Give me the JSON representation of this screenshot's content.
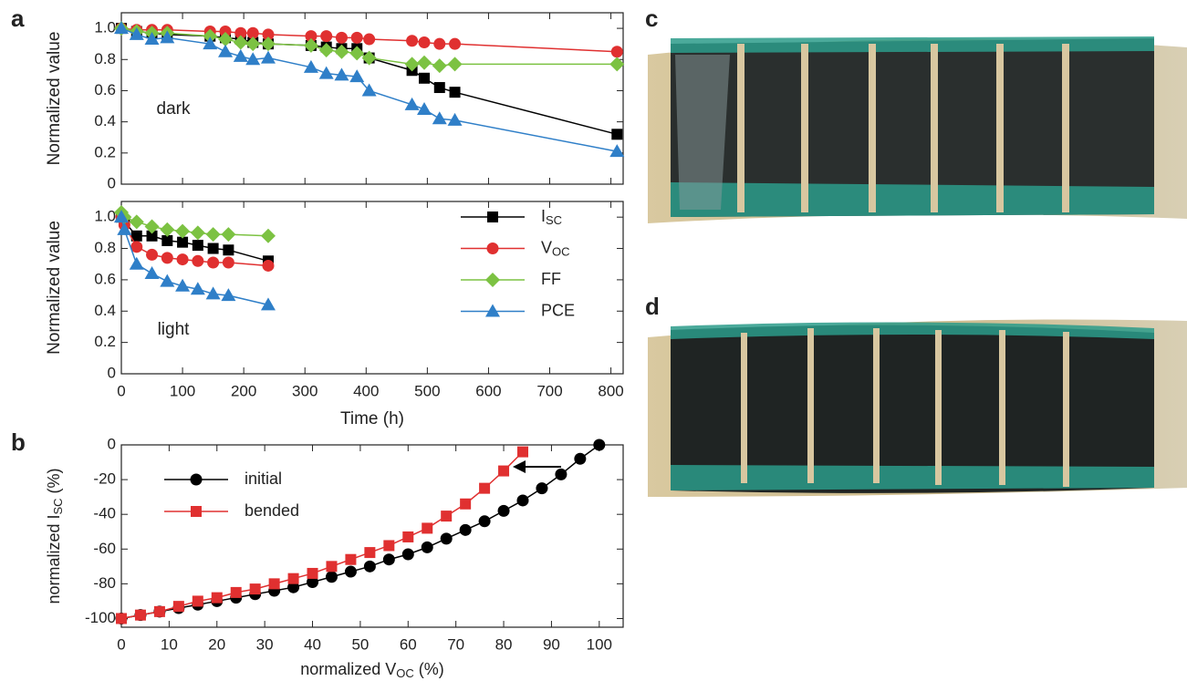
{
  "panel_labels": [
    "a",
    "b",
    "c",
    "d"
  ],
  "chart_data": [
    {
      "type": "line",
      "ylabel": "Normalized value",
      "annotation": "dark",
      "x": [
        0,
        25,
        50,
        75,
        145,
        170,
        195,
        215,
        240,
        310,
        335,
        360,
        385,
        405,
        475,
        495,
        520,
        545,
        810
      ],
      "xlim": [
        0,
        820
      ],
      "xticks": [
        0,
        100,
        200,
        300,
        400,
        500,
        600,
        700,
        800
      ],
      "show_xtick_labels": false,
      "ylim": [
        0,
        1.1
      ],
      "yticks": [
        0,
        0.2,
        0.4,
        0.6,
        0.8,
        {
          "value": 1.0,
          "label": "1.0"
        }
      ],
      "series": [
        {
          "color": "#000000",
          "marker": "square",
          "values": [
            1.0,
            0.98,
            0.97,
            0.96,
            0.95,
            0.94,
            0.93,
            0.91,
            0.9,
            0.89,
            0.88,
            0.87,
            0.87,
            0.81,
            0.73,
            0.68,
            0.62,
            0.59,
            0.32
          ]
        },
        {
          "color": "#e03030",
          "marker": "circle",
          "values": [
            1.0,
            0.99,
            0.99,
            0.99,
            0.98,
            0.98,
            0.97,
            0.97,
            0.96,
            0.95,
            0.95,
            0.94,
            0.94,
            0.93,
            0.92,
            0.91,
            0.9,
            0.9,
            0.85
          ]
        },
        {
          "color": "#7cc242",
          "marker": "diamond",
          "values": [
            1.0,
            0.98,
            0.97,
            0.97,
            0.95,
            0.93,
            0.91,
            0.9,
            0.9,
            0.89,
            0.86,
            0.85,
            0.84,
            0.81,
            0.77,
            0.78,
            0.76,
            0.77,
            0.77
          ]
        },
        {
          "color": "#2f7fc8",
          "marker": "triangle",
          "values": [
            1.0,
            0.96,
            0.93,
            0.94,
            0.9,
            0.85,
            0.82,
            0.8,
            0.81,
            0.75,
            0.71,
            0.7,
            0.69,
            0.6,
            0.51,
            0.48,
            0.42,
            0.41,
            0.21
          ]
        }
      ]
    },
    {
      "type": "line",
      "ylabel": "Normalized value",
      "annotation": "light",
      "xlabel": "Time (h)",
      "x": [
        0,
        5,
        25,
        50,
        75,
        100,
        125,
        150,
        175,
        240
      ],
      "xlim": [
        0,
        820
      ],
      "xticks": [
        0,
        100,
        200,
        300,
        400,
        500,
        600,
        700,
        800
      ],
      "show_xtick_labels": true,
      "ylim": [
        0,
        1.1
      ],
      "yticks": [
        0,
        0.2,
        0.4,
        0.6,
        0.8,
        {
          "value": 1.0,
          "label": "1.0"
        }
      ],
      "legend": "right",
      "series": [
        {
          "name": [
            "I",
            "SC"
          ],
          "color": "#000000",
          "marker": "square",
          "values": [
            1.0,
            0.97,
            0.88,
            0.88,
            0.85,
            0.84,
            0.82,
            0.8,
            0.79,
            0.72
          ]
        },
        {
          "name": [
            "V",
            "OC"
          ],
          "color": "#e03030",
          "marker": "circle",
          "values": [
            1.0,
            0.95,
            0.81,
            0.76,
            0.74,
            0.73,
            0.72,
            0.71,
            0.71,
            0.69
          ]
        },
        {
          "name": [
            "FF"
          ],
          "color": "#7cc242",
          "marker": "diamond",
          "values": [
            1.03,
            1.0,
            0.97,
            0.94,
            0.92,
            0.91,
            0.9,
            0.89,
            0.89,
            0.88
          ]
        },
        {
          "name": [
            "PCE"
          ],
          "color": "#2f7fc8",
          "marker": "triangle",
          "values": [
            1.0,
            0.92,
            0.7,
            0.64,
            0.59,
            0.56,
            0.54,
            0.51,
            0.5,
            0.44
          ]
        }
      ]
    },
    {
      "type": "line",
      "xlabel": [
        "normalized V",
        "OC",
        " (%)"
      ],
      "ylabel": [
        "normalized I",
        "SC",
        " (%)"
      ],
      "xlim": [
        0,
        105
      ],
      "xticks": [
        0,
        10,
        20,
        30,
        40,
        50,
        60,
        70,
        80,
        90,
        100
      ],
      "show_xtick_labels": true,
      "ylim": [
        -105,
        0
      ],
      "yticks": [
        -100,
        -80,
        -60,
        -40,
        -20,
        0
      ],
      "legend": "left",
      "series": [
        {
          "name": [
            "initial"
          ],
          "color": "#000000",
          "marker": "circle",
          "x": [
            0,
            4,
            8,
            12,
            16,
            20,
            24,
            28,
            32,
            36,
            40,
            44,
            48,
            52,
            56,
            60,
            64,
            68,
            72,
            76,
            80,
            84,
            88,
            92,
            96,
            100
          ],
          "values": [
            -100,
            -98,
            -96,
            -94,
            -92,
            -90,
            -88,
            -86,
            -84,
            -82,
            -79,
            -76,
            -73,
            -70,
            -66,
            -63,
            -59,
            -54,
            -49,
            -44,
            -38,
            -32,
            -25,
            -17,
            -8,
            0
          ]
        },
        {
          "name": [
            "bended"
          ],
          "color": "#e03030",
          "marker": "square",
          "x": [
            0,
            4,
            8,
            12,
            16,
            20,
            24,
            28,
            32,
            36,
            40,
            44,
            48,
            52,
            56,
            60,
            64,
            68,
            72,
            76,
            80,
            84
          ],
          "values": [
            -100,
            -98,
            -96,
            -93,
            -90,
            -88,
            -85,
            -83,
            -80,
            -77,
            -74,
            -70,
            -66,
            -62,
            -58,
            -53,
            -48,
            -41,
            -34,
            -25,
            -15,
            -4
          ]
        }
      ]
    }
  ]
}
